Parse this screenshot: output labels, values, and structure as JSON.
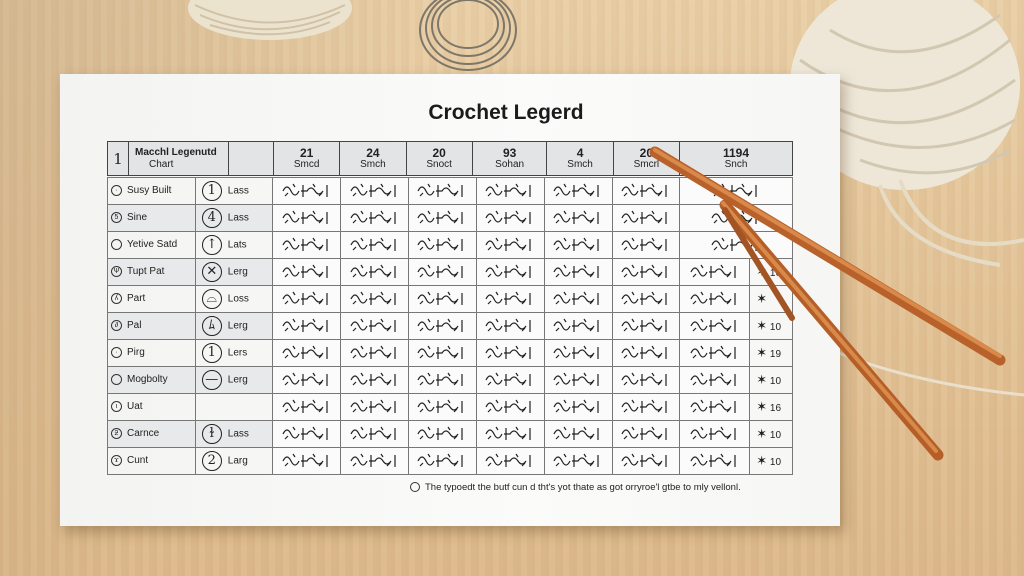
{
  "title": "Crochet Legerd",
  "header": {
    "index": "1",
    "label_line1": "Macchl Legenutd",
    "label_line2": "Chart",
    "columns": [
      {
        "num": "21",
        "sub": "Smcd"
      },
      {
        "num": "24",
        "sub": "Smch"
      },
      {
        "num": "20",
        "sub": "Snoct"
      },
      {
        "num": "93",
        "sub": "Sohan"
      },
      {
        "num": "4",
        "sub": "Smch"
      },
      {
        "num": "20",
        "sub": "Smcrl"
      },
      {
        "num": "1194",
        "sub": "Snch"
      }
    ]
  },
  "legend": [
    {
      "name": "Susy Built",
      "mark": "·",
      "symbol": "1",
      "kind": "Lass"
    },
    {
      "name": "Sine",
      "mark": "5",
      "symbol": "4",
      "kind": "Lass"
    },
    {
      "name": "Yetive Satd",
      "mark": "",
      "symbol": "↑",
      "kind": "Lats"
    },
    {
      "name": "Tupt Pat",
      "mark": "Ψ",
      "symbol": "✕",
      "kind": "Lerg"
    },
    {
      "name": "Part",
      "mark": "ʎ",
      "symbol": "⌓",
      "kind": "Loss"
    },
    {
      "name": "Pal",
      "mark": "∂",
      "symbol": "ﾑ",
      "kind": "Lerg"
    },
    {
      "name": "Pirg",
      "mark": "·",
      "symbol": "1",
      "kind": "Lers"
    },
    {
      "name": "Mogbolty",
      "mark": "",
      "symbol": "—",
      "kind": "Lerg"
    },
    {
      "name": "Uat",
      "mark": "ı",
      "symbol": "",
      "kind": ""
    },
    {
      "name": "Carnce",
      "mark": "ƻ",
      "symbol": "ɫ",
      "kind": "Lass"
    },
    {
      "name": "Cunt",
      "mark": "ϫ",
      "symbol": "2",
      "kind": "Larg"
    }
  ],
  "last_column_values": [
    "",
    "",
    "",
    "16",
    "",
    "10",
    "19",
    "10",
    "16",
    "10",
    "10"
  ],
  "footnote": "The typoedt the butf cun d tht's yot thate as got orryroe'l gtbe to mly vellonl."
}
